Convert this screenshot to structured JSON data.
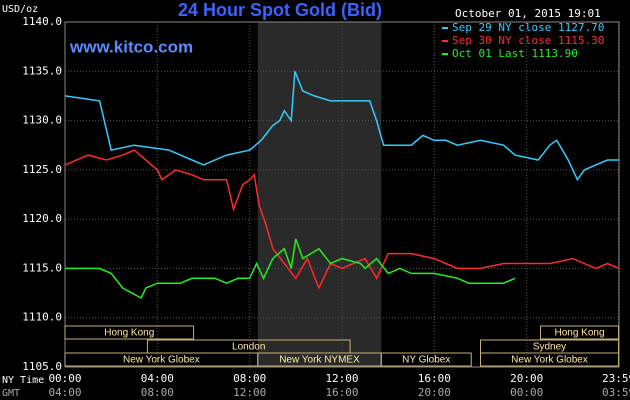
{
  "chart_data": {
    "type": "line",
    "title": "24 Hour Spot Gold (Bid)",
    "timestamp": "October 01, 2015 19:01",
    "watermark": "www.kitco.com",
    "y_label": "USD/oz",
    "x_label": "NY Time",
    "x2_label": "GMT",
    "xlim": [
      0,
      24
    ],
    "ylim": [
      1105,
      1140
    ],
    "xticks": [
      {
        "value": 0,
        "label": "00:00"
      },
      {
        "value": 4,
        "label": "04:00"
      },
      {
        "value": 8,
        "label": "08:00"
      },
      {
        "value": 12,
        "label": "12:00"
      },
      {
        "value": 16,
        "label": "16:00"
      },
      {
        "value": 20,
        "label": "20:00"
      },
      {
        "value": 23.98,
        "label": "23:59"
      }
    ],
    "x2tick_labels": [
      "04:00",
      "08:00",
      "12:00",
      "16:00",
      "20:00",
      "00:00",
      "03:59"
    ],
    "yticks": [
      {
        "value": 1105,
        "label": "1105.0"
      },
      {
        "value": 1110,
        "label": "1110.0"
      },
      {
        "value": 1115,
        "label": "1115.0"
      },
      {
        "value": 1120,
        "label": "1120.0"
      },
      {
        "value": 1125,
        "label": "1125.0"
      },
      {
        "value": 1130,
        "label": "1130.0"
      },
      {
        "value": 1135,
        "label": "1135.0"
      },
      {
        "value": 1140,
        "label": "1140.0"
      }
    ],
    "grid": true,
    "series": [
      {
        "name": "Sep 29 NY close 1127.70",
        "color": "#33ccff",
        "x": [
          0,
          1.5,
          2,
          3,
          4.5,
          5.5,
          6,
          7,
          8,
          8.5,
          9,
          9.3,
          9.5,
          9.8,
          9.96,
          10.3,
          10.8,
          11.5,
          12.5,
          13.2,
          13.5,
          13.8,
          15,
          15.5,
          16,
          16.5,
          17,
          18,
          19,
          19.5,
          20.5,
          21,
          21.3,
          21.8,
          22.2,
          22.5,
          23,
          23.5,
          24
        ],
        "values": [
          1132.5,
          1132,
          1127,
          1127.5,
          1127,
          1126,
          1125.5,
          1126.5,
          1127,
          1128,
          1129.5,
          1130,
          1131,
          1130,
          1135,
          1133,
          1132.5,
          1132,
          1132,
          1132,
          1130,
          1127.5,
          1127.5,
          1128.5,
          1128,
          1128,
          1127.5,
          1128,
          1127.5,
          1126.5,
          1126,
          1127.5,
          1128,
          1126,
          1124,
          1125,
          1125.5,
          1126,
          1126
        ]
      },
      {
        "name": "Sep 30 NY close 1115.30",
        "color": "#ff2a2a",
        "x": [
          0,
          1,
          1.8,
          2.5,
          3,
          3.5,
          4,
          4.2,
          4.8,
          5.5,
          6,
          7,
          7.3,
          7.7,
          8,
          8.2,
          8.4,
          8.7,
          9,
          9.5,
          10,
          10.5,
          11,
          11.5,
          12,
          12.5,
          13,
          13.5,
          14,
          15,
          16,
          16.5,
          17,
          18,
          19,
          20,
          21,
          22,
          23,
          23.5,
          24
        ],
        "values": [
          1125.5,
          1126.5,
          1126,
          1126.5,
          1127,
          1126,
          1125,
          1124,
          1125,
          1124.5,
          1124,
          1124,
          1121,
          1123.5,
          1124,
          1124.5,
          1121.5,
          1119.5,
          1117,
          1115.5,
          1114,
          1116,
          1113,
          1115.5,
          1115,
          1115.5,
          1116,
          1114,
          1116.5,
          1116.5,
          1116,
          1115.5,
          1115,
          1115,
          1115.5,
          1115.5,
          1115.5,
          1116,
          1115,
          1115.5,
          1115
        ]
      },
      {
        "name": "Oct 01 Last 1113.90",
        "color": "#22ee22",
        "x": [
          0,
          1.5,
          2,
          2.5,
          3.3,
          3.5,
          4,
          5,
          5.5,
          6.5,
          7,
          7.5,
          8,
          8.3,
          8.6,
          9,
          9.5,
          9.8,
          10,
          10.3,
          11,
          11.5,
          12,
          12.8,
          13,
          13.5,
          14,
          14.5,
          15,
          16,
          17,
          17.5,
          19,
          19.5
        ],
        "values": [
          1115,
          1115,
          1114.5,
          1113,
          1112,
          1113,
          1113.5,
          1113.5,
          1114,
          1114,
          1113.5,
          1114,
          1114,
          1115.5,
          1114,
          1116,
          1117,
          1115,
          1118,
          1116,
          1117,
          1115.5,
          1116,
          1115.5,
          1115,
          1116,
          1114.5,
          1115,
          1114.5,
          1114.5,
          1114,
          1113.5,
          1113.5,
          1114
        ]
      }
    ],
    "sessions": [
      {
        "name": "Hong Kong",
        "row": 0,
        "start": 0,
        "end": 5.57
      },
      {
        "name": "Hong Kong",
        "row": 0,
        "start": 20.6,
        "end": 23.98
      },
      {
        "name": "London",
        "row": 1,
        "start": 3.57,
        "end": 12.35
      },
      {
        "name": "Sydney",
        "row": 1,
        "start": 18,
        "end": 23.98
      },
      {
        "name": "New York Globex",
        "row": 2,
        "start": 0,
        "end": 8.35
      },
      {
        "name": "New York NYMEX",
        "row": 2,
        "start": 8.35,
        "end": 13.7,
        "shaded": true
      },
      {
        "name": "NY Globex",
        "row": 2,
        "start": 13.7,
        "end": 17.6
      },
      {
        "name": "New York Globex",
        "row": 2,
        "start": 18,
        "end": 23.98
      }
    ]
  }
}
